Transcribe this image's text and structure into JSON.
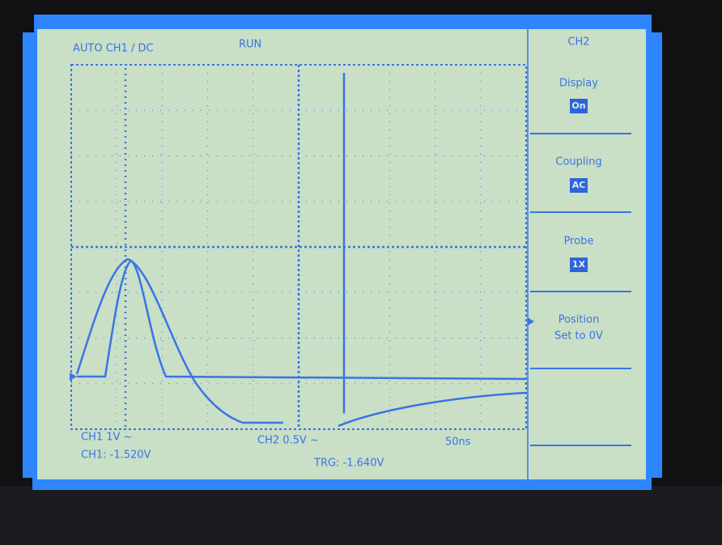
{
  "status_bar": {
    "mode": "AUTO CH1 / DC",
    "state": "RUN"
  },
  "menu": {
    "title": "CH2",
    "items": [
      {
        "label": "Display",
        "value": "On"
      },
      {
        "label": "Coupling",
        "value": "AC"
      },
      {
        "label": "Probe",
        "value": "1X"
      },
      {
        "label": "Position",
        "detail": "Set to 0V"
      }
    ]
  },
  "readout": {
    "ch1_scale": "CH1 1V ~",
    "ch2_scale": "CH2 0.5V ~",
    "timebase": "50ns",
    "ch1_level": "CH1: -1.520V",
    "trigger": "TRG: -1.640V"
  }
}
